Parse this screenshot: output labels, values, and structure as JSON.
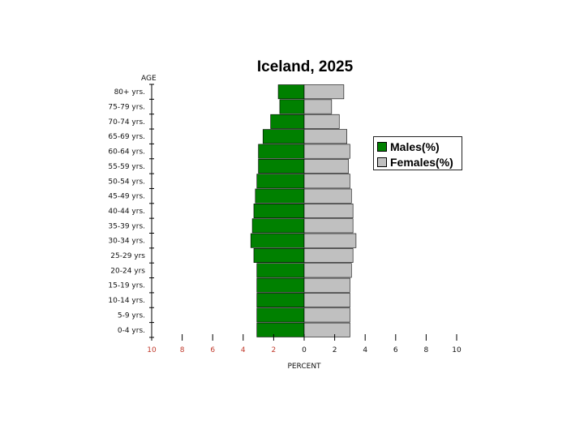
{
  "chart_data": {
    "type": "bar",
    "title": "Iceland, 2025",
    "ylabel": "AGE",
    "xlabel": "PERCENT",
    "categories": [
      "80+ yrs.",
      "75-79 yrs.",
      "70-74 yrs.",
      "65-69 yrs.",
      "60-64 yrs.",
      "55-59 yrs.",
      "50-54 yrs.",
      "45-49 yrs.",
      "40-44 yrs.",
      "35-39 yrs.",
      "30-34 yrs.",
      "25-29 yrs",
      "20-24 yrs",
      "15-19 yrs.",
      "10-14 yrs.",
      "5-9 yrs.",
      "0-4 yrs."
    ],
    "series": [
      {
        "name": "Males(%)",
        "color": "#008000",
        "values": [
          1.7,
          1.6,
          2.2,
          2.7,
          3.0,
          3.0,
          3.1,
          3.2,
          3.3,
          3.4,
          3.5,
          3.3,
          3.1,
          3.1,
          3.1,
          3.1,
          3.1
        ]
      },
      {
        "name": "Females(%)",
        "color": "#c0c0c0",
        "values": [
          2.6,
          1.8,
          2.3,
          2.8,
          3.0,
          2.9,
          3.0,
          3.1,
          3.2,
          3.2,
          3.4,
          3.2,
          3.1,
          3.0,
          3.0,
          3.0,
          3.0
        ]
      }
    ],
    "xlim": [
      -10,
      10
    ],
    "xticks": [
      "10",
      "8",
      "6",
      "4",
      "2",
      "0",
      "2",
      "4",
      "6",
      "8",
      "10"
    ],
    "legend_position": "right",
    "grid": false
  }
}
